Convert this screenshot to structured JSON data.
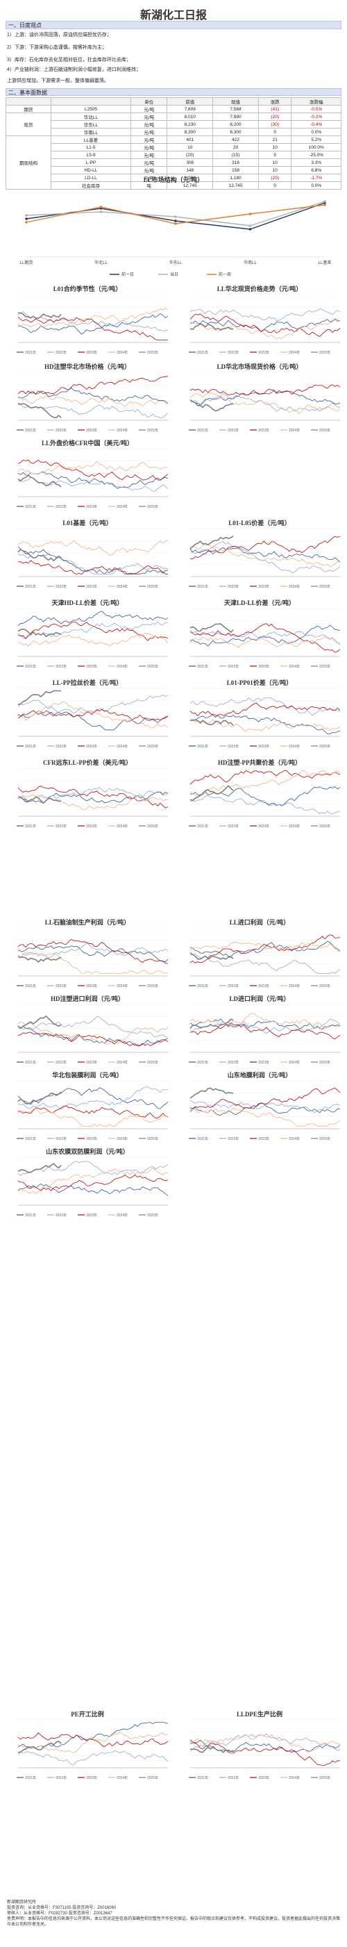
{
  "title": "新湖化工日报",
  "section1": {
    "heading": "一、日度观点",
    "p1": "1）上游：油价冲高回落，原油供应端担忧仍存；",
    "p2": "2）下游：下游采购心态谨慎，按需补库为主；",
    "p3": "3）库存：石化库存去化至相对低位，社会库存环比去库；",
    "p4": "4）产业链利润：上游石脑油制利润小幅修复，进口利润维持；",
    "p5": "上游供应增加，下游需求一般，整体偏弱震荡。"
  },
  "section2": {
    "heading": "二、基本面数据",
    "columns": [
      "",
      "",
      "单位",
      "前值",
      "现值",
      "涨跌",
      "涨跌幅"
    ],
    "groups": [
      {
        "name": "期货",
        "rows": [
          {
            "item": "L2505",
            "unit": "元/吨",
            "prev": "7,609",
            "curr": "7,568",
            "chg": "(41)",
            "pct": "-0.5%",
            "neg": true
          }
        ]
      },
      {
        "name": "现货",
        "rows": [
          {
            "item": "华北LL",
            "unit": "元/吨",
            "prev": "8,010",
            "curr": "7,990",
            "chg": "(20)",
            "pct": "-0.2%",
            "neg": true
          },
          {
            "item": "华东LL",
            "unit": "元/吨",
            "prev": "8,230",
            "curr": "8,200",
            "chg": "(30)",
            "pct": "-0.4%",
            "neg": true
          },
          {
            "item": "华南LL",
            "unit": "元/吨",
            "prev": "8,300",
            "curr": "8,300",
            "chg": "0",
            "pct": "0.0%",
            "neg": false
          }
        ]
      },
      {
        "name": "期现结构",
        "rows": [
          {
            "item": "LL基差",
            "unit": "元/吨",
            "prev": "401",
            "curr": "422",
            "chg": "21",
            "pct": "5.2%",
            "neg": false
          },
          {
            "item": "L1-5",
            "unit": "元/吨",
            "prev": "10",
            "curr": "20",
            "chg": "10",
            "pct": "100.0%",
            "neg": false
          },
          {
            "item": "L5-9",
            "unit": "元/吨",
            "prev": "(20)",
            "curr": "(15)",
            "chg": "5",
            "pct": "-25.0%",
            "neg": false
          },
          {
            "item": "L-PP",
            "unit": "元/吨",
            "prev": "306",
            "curr": "316",
            "chg": "10",
            "pct": "3.3%",
            "neg": false
          },
          {
            "item": "HD-LL",
            "unit": "元/吨",
            "prev": "148",
            "curr": "158",
            "chg": "10",
            "pct": "6.8%",
            "neg": false
          },
          {
            "item": "LD-LL",
            "unit": "元/吨",
            "prev": "1,200",
            "curr": "1,180",
            "chg": "(20)",
            "pct": "-1.7%",
            "neg": true
          },
          {
            "item": "社会库存",
            "unit": "吨",
            "prev": "12,745",
            "curr": "12,745",
            "chg": "0",
            "pct": "0.0%",
            "neg": false
          }
        ]
      }
    ]
  },
  "chart_market": {
    "title": "LL市场结构（元/吨）",
    "categories": [
      "LL期货",
      "华北LL",
      "华东LL",
      "华南LL",
      "LL基差"
    ],
    "series": [
      {
        "name": "前一日",
        "color": "#1f3864"
      },
      {
        "name": "当日",
        "color": "#b0b0b0"
      },
      {
        "name": "前一周",
        "color": "#e37b2b"
      }
    ]
  },
  "small_chart_titles": [
    "L01合约季节性（元/吨）",
    "LL华北现货价格走势（元/吨）",
    "HD注塑华北市场价格（元/吨）",
    "LD华北市场现货价格（元/吨）",
    "LL外盘价格CFR中国（美元/吨）",
    "",
    "L01基差（元/吨）",
    "L01-L05价差（元/吨）",
    "天津HD-LL价差（元/吨）",
    "天津LD-LL价差（元/吨）",
    "LL-PP拉丝价差（元/吨）",
    "L01-PP01价差（元/吨）",
    "CFR远东LL-PP价差（美元/吨）",
    "HD注塑-PP共聚价差（元/吨）",
    "LL石脑油制生产利润（元/吨）",
    "LL进口利润（元/吨）",
    "HD注塑进口利润（元/吨）",
    "LD进口利润（元/吨）",
    "华北包装膜利润（元/吨）",
    "山东地膜利润（元/吨）",
    "山东农膜双防膜利润（元/吨）",
    "",
    "PE开工比例",
    "LLDPE生产比例"
  ],
  "legend_years": [
    "2021年",
    "2022年",
    "2023年",
    "2024年",
    "2025年"
  ],
  "footer": {
    "l1": "新湖期货研究所",
    "l2": "投资咨询：从业资格号：F3071105    投资咨询号：Z0016060",
    "l3": "审核人：从业资格号：F0282730    投资咨询号：Z0013647",
    "l4": "免责声明：本报告中的信息均来源于公开资料，本公司对这些信息的准确性和完整性不作任何保证。报告中的观点和建议仅供参考，不构成投资建议。投资者据此做出的任何投资决策与本公司和作者无关。"
  }
}
